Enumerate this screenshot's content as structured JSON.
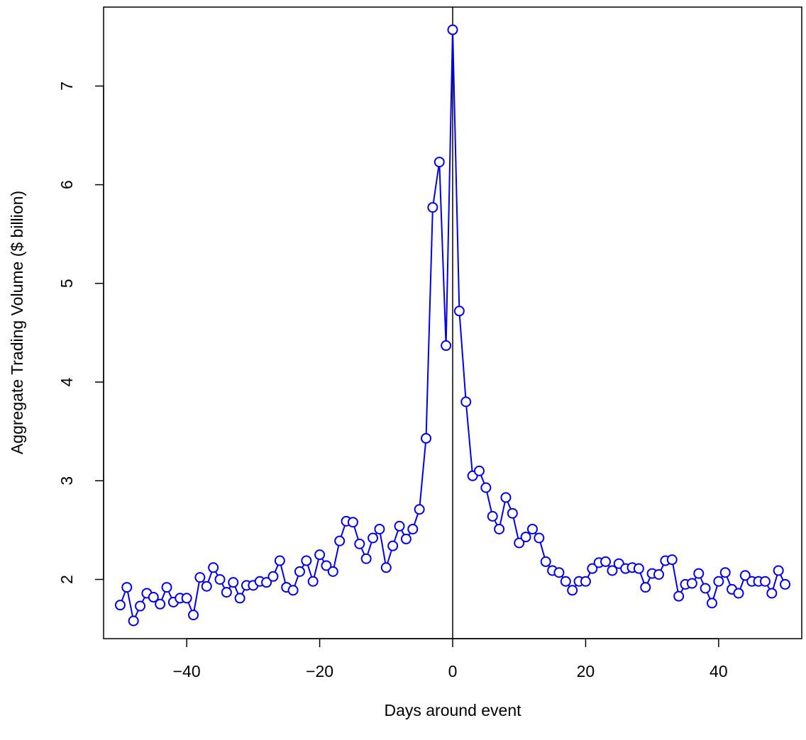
{
  "chart_data": {
    "type": "line",
    "title": "",
    "xlabel": "Days around event",
    "ylabel": "Aggregate Trading Volume ($ billion)",
    "xlim": [
      -52.5,
      52.5
    ],
    "ylim": [
      1.4,
      7.8
    ],
    "x_ticks": [
      -40,
      -20,
      0,
      20,
      40
    ],
    "x_tick_labels": [
      "−40",
      "−20",
      "0",
      "20",
      "40"
    ],
    "y_ticks": [
      2,
      3,
      4,
      5,
      6,
      7
    ],
    "y_tick_labels": [
      "2",
      "3",
      "4",
      "5",
      "6",
      "7"
    ],
    "reference_line_x": 0,
    "grid": false,
    "legend": "none",
    "marker": "open-circle",
    "color": "#0000ee",
    "series": [
      {
        "x": [
          -50,
          -49,
          -48,
          -47,
          -46,
          -45,
          -44,
          -43,
          -42,
          -41,
          -40,
          -39,
          -38,
          -37,
          -36,
          -35,
          -34,
          -33,
          -32,
          -31,
          -30,
          -29,
          -28,
          -27,
          -26,
          -25,
          -24,
          -23,
          -22,
          -21,
          -20,
          -19,
          -18,
          -17,
          -16,
          -15,
          -14,
          -13,
          -12,
          -11,
          -10,
          -9,
          -8,
          -7,
          -6,
          -5,
          -4,
          -3,
          -2,
          -1,
          0,
          1,
          2,
          3,
          4,
          5,
          6,
          7,
          8,
          9,
          10,
          11,
          12,
          13,
          14,
          15,
          16,
          17,
          18,
          19,
          20,
          21,
          22,
          23,
          24,
          25,
          26,
          27,
          28,
          29,
          30,
          31,
          32,
          33,
          34,
          35,
          36,
          37,
          38,
          39,
          40,
          41,
          42,
          43,
          44,
          45,
          46,
          47,
          48,
          49,
          50
        ],
        "values": [
          1.74,
          1.92,
          1.58,
          1.73,
          1.86,
          1.82,
          1.75,
          1.92,
          1.77,
          1.81,
          1.81,
          1.64,
          2.02,
          1.93,
          2.12,
          2.0,
          1.87,
          1.97,
          1.81,
          1.94,
          1.94,
          1.98,
          1.97,
          2.03,
          2.19,
          1.92,
          1.89,
          2.08,
          2.19,
          1.98,
          2.25,
          2.14,
          2.08,
          2.39,
          2.59,
          2.58,
          2.36,
          2.21,
          2.42,
          2.51,
          2.12,
          2.34,
          2.54,
          2.41,
          2.51,
          2.71,
          3.43,
          5.77,
          6.23,
          4.37,
          7.57,
          4.72,
          3.8,
          3.05,
          3.1,
          2.93,
          2.64,
          2.51,
          2.83,
          2.67,
          2.37,
          2.43,
          2.51,
          2.42,
          2.18,
          2.09,
          2.07,
          1.98,
          1.89,
          1.98,
          1.98,
          2.11,
          2.17,
          2.18,
          2.09,
          2.16,
          2.11,
          2.12,
          2.11,
          1.92,
          2.06,
          2.05,
          2.19,
          2.2,
          1.83,
          1.95,
          1.96,
          2.06,
          1.91,
          1.76,
          1.98,
          2.07,
          1.9,
          1.86,
          2.04,
          1.98,
          1.98,
          1.98,
          1.86,
          2.09,
          1.95
        ]
      }
    ]
  }
}
